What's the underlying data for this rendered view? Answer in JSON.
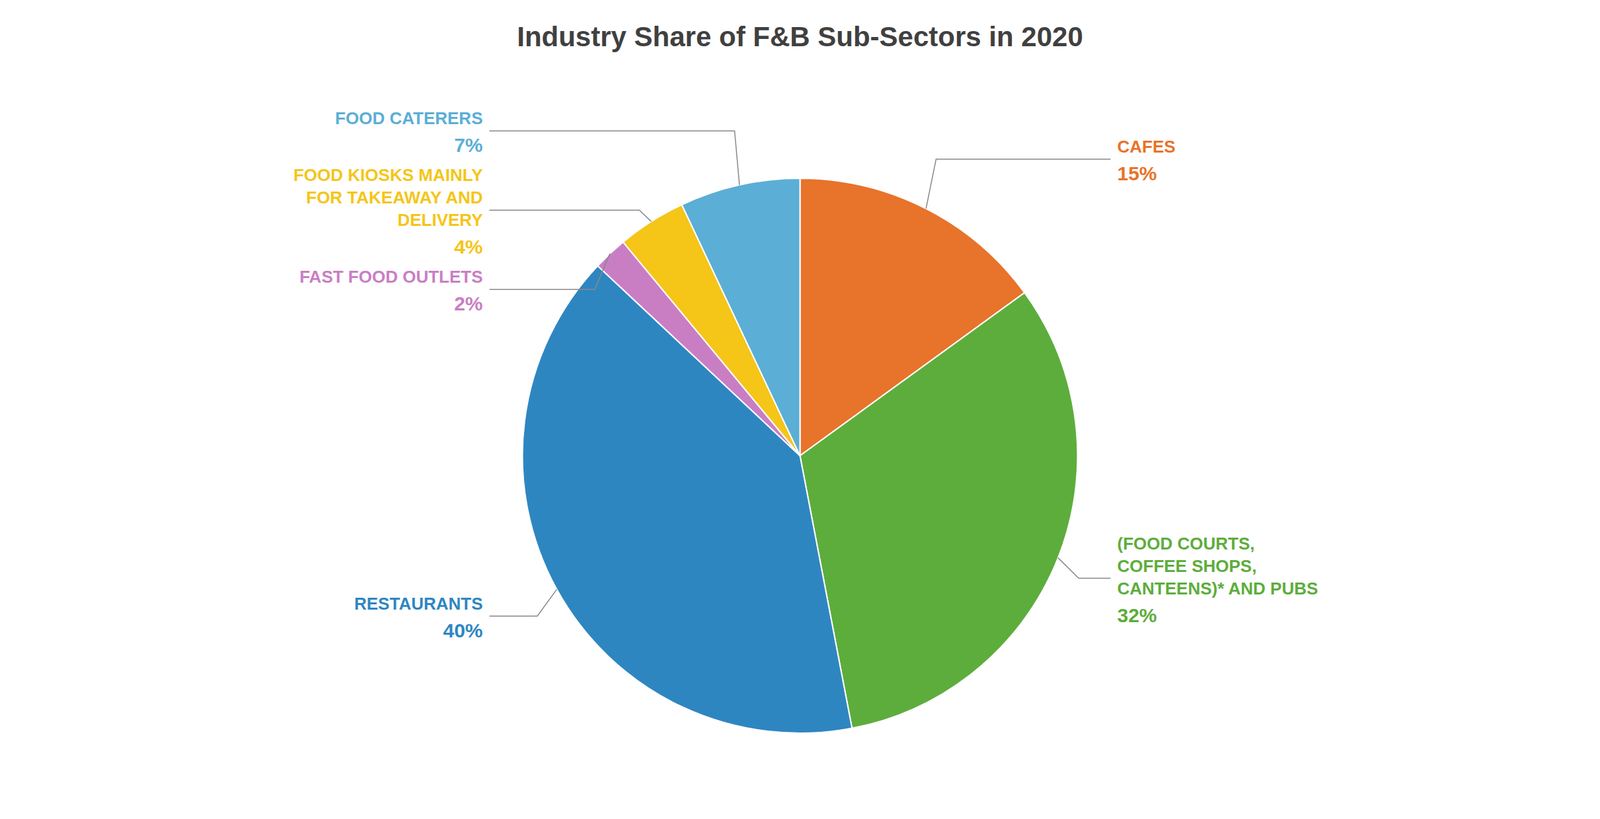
{
  "chart_data": {
    "type": "pie",
    "title": "Industry Share of F&B Sub-Sectors in 2020",
    "categories": [
      "CAFES",
      "(FOOD COURTS,\nCOFFEE SHOPS,\nCANTEENS)* AND PUBS",
      "RESTAURANTS",
      "FAST FOOD OUTLETS",
      "FOOD KIOSKS MAINLY\nFOR TAKEAWAY AND\nDELIVERY",
      "FOOD CATERERS"
    ],
    "values": [
      15,
      32,
      40,
      2,
      4,
      7
    ],
    "value_labels": [
      "15%",
      "32%",
      "40%",
      "2%",
      "4%",
      "7%"
    ],
    "colors": [
      "#E8732A",
      "#5DAD3C",
      "#2E86C1",
      "#C97EC4",
      "#F5C518",
      "#5BAED6"
    ],
    "data_labels": true
  }
}
